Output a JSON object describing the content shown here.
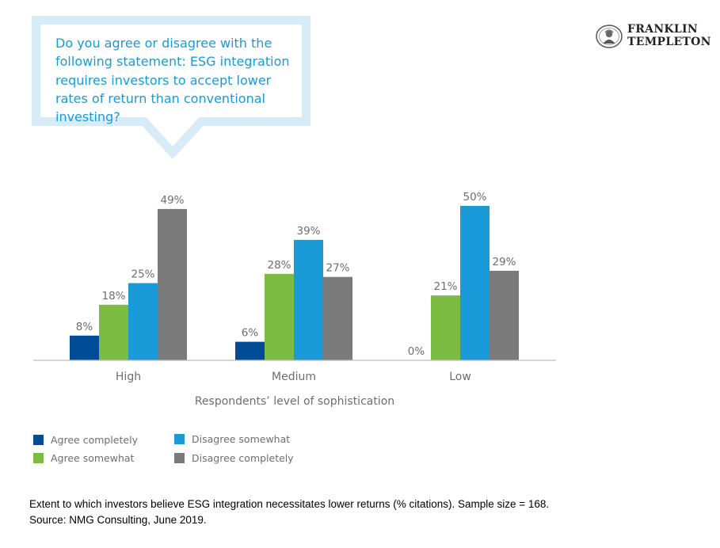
{
  "question": "Do you agree or disagree with the following statement: ESG integration requires investors to accept lower rates of return than conventional investing?",
  "logo": {
    "line1": "FRANKLIN",
    "line2": "TEMPLETON"
  },
  "chart_data": {
    "type": "bar",
    "categories": [
      "High",
      "Medium",
      "Low"
    ],
    "xlabel": "Respondents’ level of sophistication",
    "ylabel": "",
    "ylim": [
      0,
      50
    ],
    "grid": false,
    "legend_position": "bottom-left",
    "series": [
      {
        "name": "Agree completely",
        "color": "#004c97",
        "values": [
          8,
          6,
          0
        ],
        "labels": [
          "8%",
          "6%",
          "0%"
        ]
      },
      {
        "name": "Agree somewhat",
        "color": "#7dbc42",
        "values": [
          18,
          28,
          21
        ],
        "labels": [
          "18%",
          "28%",
          "21%"
        ]
      },
      {
        "name": "Disagree somewhat",
        "color": "#1a9bd8",
        "values": [
          25,
          39,
          50
        ],
        "labels": [
          "25%",
          "39%",
          "50%"
        ]
      },
      {
        "name": "Disagree completely",
        "color": "#7b7b7b",
        "values": [
          49,
          27,
          29
        ],
        "labels": [
          "49%",
          "27%",
          "29%"
        ]
      }
    ]
  },
  "footnote": {
    "line1": "Extent to which investors believe ESG integration necessitates lower returns (% citations). Sample size = 168.",
    "line2": "Source: NMG Consulting, June 2019."
  },
  "colors": {
    "accent": "#1a9bd8",
    "bubble_border": "#d8ecf7",
    "axis": "#bcbec0",
    "text": "#6d6e71"
  }
}
